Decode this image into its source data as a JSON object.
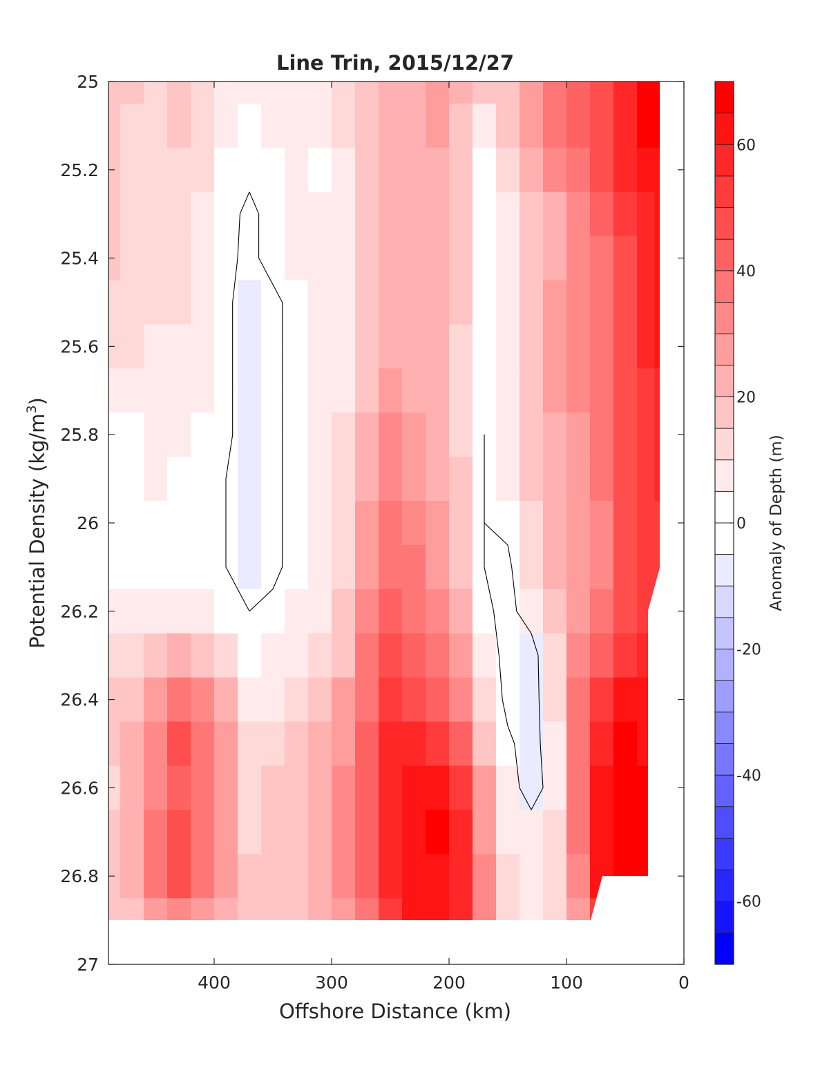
{
  "chart_data": {
    "type": "heatmap",
    "subtype": "filled-contour",
    "title": "Line Trin, 2015/12/27",
    "xlabel": "Offshore Distance (km)",
    "ylabel_text": "Potential Density (kg/m",
    "ylabel_superscript": "3",
    "ylabel_close": ")",
    "xlim": [
      490,
      0
    ],
    "x_reversed": true,
    "ylim": [
      25,
      27
    ],
    "y_reversed": true,
    "x_ticks": [
      400,
      300,
      200,
      100,
      0
    ],
    "x_tick_labels": [
      "400",
      "300",
      "200",
      "100",
      "0"
    ],
    "y_ticks": [
      25,
      25.2,
      25.4,
      25.6,
      25.8,
      26,
      26.2,
      26.4,
      26.6,
      26.8,
      27
    ],
    "y_tick_labels": [
      "25",
      "25.2",
      "25.4",
      "25.6",
      "25.8",
      "26",
      "26.2",
      "26.4",
      "26.6",
      "26.8",
      "27"
    ],
    "grid": false,
    "colorbar": {
      "label": "Anomaly of Depth (m)",
      "range": [
        -70,
        70
      ],
      "level_step": 5,
      "ticks": [
        60,
        40,
        20,
        0,
        -20,
        -40,
        -60
      ],
      "tick_labels": [
        "60",
        "40",
        "20",
        "0",
        "-20",
        "-40",
        "-60"
      ],
      "colormap": "blue-white-red",
      "neg_color": "#0000ff",
      "zero_color": "#ffffff",
      "pos_color": "#ff0000"
    },
    "black_contour_level": 0,
    "data_extent_note": "No data below about 26.9 (and below 26.8 for x < 80 km); no data for x < 20 km.",
    "grid_x": [
      490,
      470,
      450,
      430,
      410,
      390,
      370,
      350,
      330,
      310,
      290,
      270,
      250,
      230,
      210,
      190,
      170,
      150,
      130,
      110,
      90,
      70,
      50,
      30,
      20
    ],
    "grid_y": [
      25,
      25.1,
      25.2,
      25.3,
      25.4,
      25.5,
      25.6,
      25.7,
      25.8,
      25.9,
      26,
      26.1,
      26.2,
      26.3,
      26.4,
      26.5,
      26.6,
      26.7,
      26.8,
      26.9
    ],
    "anomaly_m": [
      [
        18,
        18,
        12,
        18,
        12,
        8,
        5,
        8,
        8,
        8,
        12,
        18,
        20,
        22,
        25,
        22,
        15,
        18,
        25,
        35,
        40,
        45,
        55,
        65,
        68
      ],
      [
        18,
        12,
        10,
        15,
        10,
        5,
        3,
        5,
        5,
        5,
        10,
        18,
        20,
        22,
        25,
        18,
        8,
        15,
        25,
        35,
        40,
        45,
        55,
        65,
        68
      ],
      [
        15,
        12,
        10,
        12,
        10,
        3,
        2,
        3,
        5,
        3,
        8,
        15,
        20,
        22,
        22,
        15,
        3,
        10,
        22,
        30,
        38,
        45,
        55,
        60,
        62
      ],
      [
        18,
        12,
        12,
        12,
        8,
        3,
        -2,
        3,
        5,
        5,
        8,
        15,
        20,
        22,
        22,
        15,
        3,
        8,
        18,
        20,
        30,
        40,
        50,
        55,
        60
      ],
      [
        15,
        12,
        12,
        12,
        8,
        2,
        -2,
        3,
        5,
        5,
        8,
        15,
        20,
        22,
        22,
        15,
        2,
        5,
        15,
        20,
        30,
        38,
        48,
        55,
        60
      ],
      [
        10,
        10,
        12,
        10,
        8,
        2,
        -5,
        -2,
        3,
        5,
        8,
        15,
        20,
        22,
        22,
        15,
        2,
        8,
        18,
        25,
        30,
        38,
        45,
        55,
        60
      ],
      [
        10,
        10,
        8,
        8,
        5,
        2,
        -5,
        -2,
        3,
        5,
        8,
        15,
        22,
        22,
        22,
        12,
        2,
        8,
        18,
        25,
        30,
        35,
        45,
        55,
        60
      ],
      [
        5,
        5,
        5,
        5,
        5,
        2,
        -5,
        -2,
        3,
        5,
        8,
        15,
        25,
        22,
        20,
        12,
        2,
        8,
        15,
        25,
        30,
        35,
        45,
        50,
        55
      ],
      [
        3,
        3,
        5,
        5,
        3,
        2,
        -5,
        -2,
        3,
        5,
        10,
        20,
        30,
        25,
        20,
        12,
        0,
        5,
        15,
        20,
        28,
        35,
        45,
        50,
        55
      ],
      [
        3,
        3,
        5,
        3,
        3,
        0,
        -5,
        -2,
        3,
        5,
        10,
        22,
        32,
        28,
        22,
        15,
        0,
        5,
        15,
        22,
        28,
        35,
        45,
        50,
        55
      ],
      [
        2,
        3,
        3,
        3,
        3,
        0,
        -5,
        -2,
        3,
        5,
        12,
        25,
        35,
        30,
        25,
        15,
        0,
        2,
        12,
        20,
        25,
        30,
        45,
        50,
        52
      ],
      [
        3,
        3,
        3,
        3,
        3,
        0,
        -5,
        -2,
        3,
        5,
        12,
        25,
        38,
        35,
        28,
        18,
        0,
        -2,
        10,
        20,
        25,
        30,
        45,
        50,
        52
      ],
      [
        5,
        5,
        5,
        5,
        5,
        2,
        0,
        2,
        5,
        8,
        15,
        30,
        40,
        38,
        30,
        20,
        2,
        -3,
        5,
        15,
        25,
        35,
        45,
        50,
        50
      ],
      [
        10,
        10,
        15,
        20,
        18,
        10,
        2,
        5,
        8,
        10,
        18,
        35,
        45,
        42,
        35,
        25,
        5,
        -3,
        -5,
        12,
        30,
        40,
        50,
        55,
        55
      ],
      [
        15,
        18,
        25,
        35,
        30,
        20,
        8,
        8,
        10,
        15,
        25,
        35,
        50,
        48,
        40,
        30,
        10,
        -3,
        -5,
        10,
        35,
        50,
        60,
        60,
        60
      ],
      [
        15,
        20,
        30,
        45,
        35,
        25,
        12,
        12,
        15,
        20,
        28,
        40,
        58,
        55,
        50,
        40,
        15,
        2,
        -5,
        8,
        35,
        55,
        65,
        62,
        62
      ],
      [
        12,
        20,
        30,
        40,
        35,
        25,
        12,
        15,
        18,
        22,
        30,
        42,
        55,
        60,
        60,
        50,
        25,
        5,
        -5,
        5,
        35,
        60,
        68,
        65,
        65
      ],
      [
        15,
        20,
        35,
        45,
        38,
        25,
        12,
        15,
        18,
        22,
        30,
        42,
        55,
        62,
        65,
        55,
        28,
        8,
        5,
        10,
        35,
        60,
        68,
        65,
        65
      ],
      [
        18,
        22,
        35,
        45,
        38,
        25,
        15,
        15,
        18,
        22,
        30,
        42,
        55,
        62,
        62,
        58,
        30,
        12,
        8,
        12,
        30,
        60,
        68,
        65,
        65
      ],
      [
        15,
        18,
        25,
        30,
        28,
        20,
        15,
        15,
        18,
        22,
        28,
        38,
        50,
        60,
        60,
        55,
        30,
        12,
        8,
        12,
        25,
        50,
        60,
        60,
        60
      ]
    ]
  }
}
